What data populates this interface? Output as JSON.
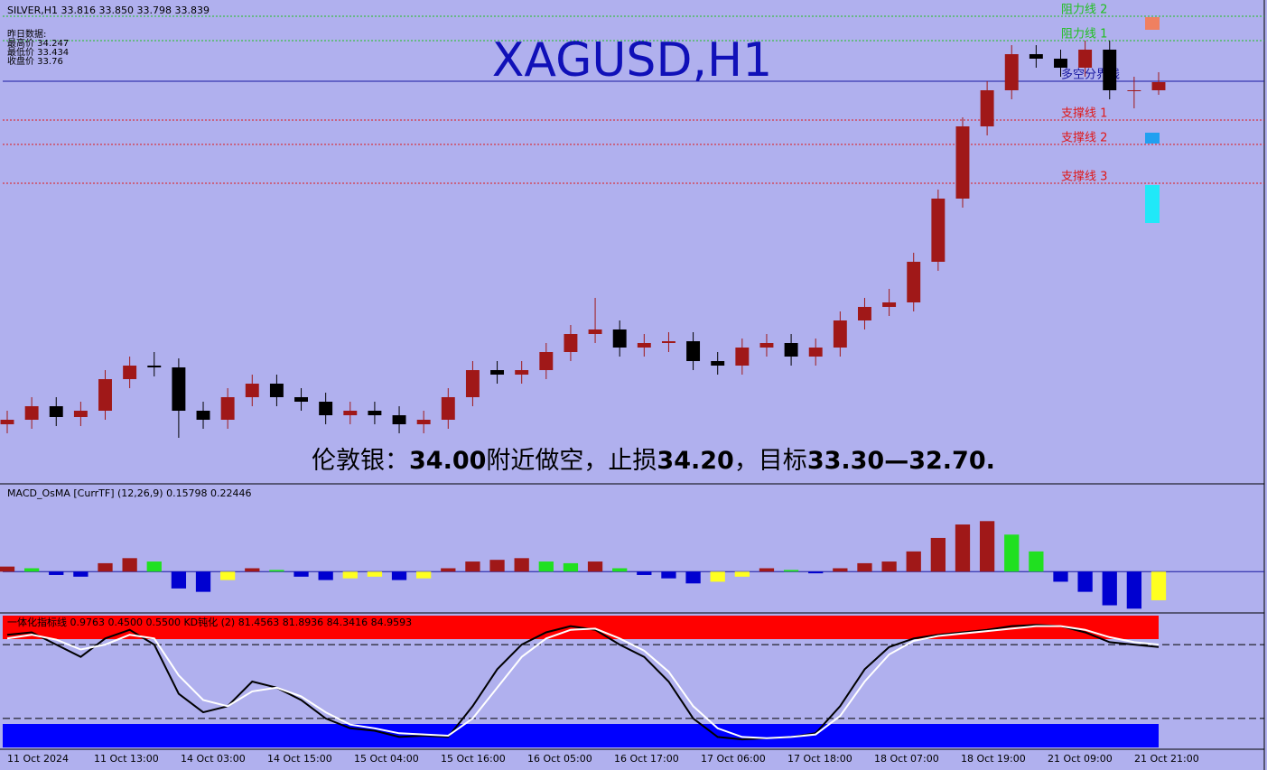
{
  "chart_data": [
    {
      "type": "candlestick",
      "title": "XAGUSD,H1",
      "symbol_line": "SILVER,H1  33.816 33.850 33.798 33.839",
      "info": [
        "昨日数据:",
        "最高价 34.247",
        "最低价 33.434",
        "收盘价 33.76"
      ],
      "annotation": [
        "伦敦银：",
        "34.00",
        "附近做空，止损",
        "34.20",
        "，目标",
        "33.30—32.70."
      ],
      "x_labels": [
        "11 Oct 2024",
        "11 Oct 13:00",
        "14 Oct 03:00",
        "14 Oct 15:00",
        "15 Oct 04:00",
        "15 Oct 16:00",
        "16 Oct 05:00",
        "16 Oct 17:00",
        "17 Oct 06:00",
        "17 Oct 18:00",
        "18 Oct 07:00",
        "18 Oct 19:00",
        "21 Oct 09:00",
        "21 Oct 21:00"
      ],
      "open": [
        30.05,
        30.1,
        30.25,
        30.13,
        30.2,
        30.55,
        30.7,
        30.68,
        30.2,
        30.1,
        30.35,
        30.5,
        30.35,
        30.3,
        30.15,
        30.2,
        30.15,
        30.05,
        30.1,
        30.35,
        30.65,
        30.6,
        30.65,
        30.85,
        31.05,
        31.1,
        30.9,
        30.95,
        30.97,
        30.75,
        30.7,
        30.9,
        30.95,
        30.8,
        30.9,
        31.2,
        31.35,
        31.4,
        31.85,
        32.55,
        33.35,
        33.75,
        34.15,
        34.1,
        34.0,
        34.2,
        33.75,
        33.75
      ],
      "high": [
        30.2,
        30.35,
        30.35,
        30.3,
        30.65,
        30.8,
        30.85,
        30.78,
        30.3,
        30.45,
        30.6,
        30.6,
        30.45,
        30.4,
        30.3,
        30.3,
        30.25,
        30.2,
        30.45,
        30.75,
        30.75,
        30.75,
        30.95,
        31.15,
        31.45,
        31.2,
        31.05,
        31.07,
        31.07,
        30.85,
        31.0,
        31.05,
        31.05,
        31.0,
        31.3,
        31.45,
        31.55,
        31.95,
        32.65,
        33.45,
        33.85,
        34.25,
        34.25,
        34.2,
        34.3,
        34.3,
        33.9,
        33.95
      ],
      "low": [
        29.95,
        30.0,
        30.03,
        30.03,
        30.1,
        30.45,
        30.58,
        29.9,
        30.0,
        30.0,
        30.25,
        30.25,
        30.2,
        30.05,
        30.05,
        30.05,
        29.95,
        29.95,
        30.0,
        30.25,
        30.5,
        30.5,
        30.55,
        30.75,
        30.95,
        30.8,
        30.8,
        30.85,
        30.65,
        30.6,
        30.6,
        30.8,
        30.7,
        30.7,
        30.8,
        31.1,
        31.25,
        31.3,
        31.75,
        32.45,
        33.25,
        33.65,
        34.0,
        33.9,
        33.9,
        33.65,
        33.55,
        33.7
      ],
      "close": [
        30.1,
        30.25,
        30.13,
        30.2,
        30.55,
        30.7,
        30.68,
        30.2,
        30.1,
        30.35,
        30.5,
        30.35,
        30.3,
        30.15,
        30.2,
        30.15,
        30.05,
        30.1,
        30.35,
        30.65,
        30.6,
        30.65,
        30.85,
        31.05,
        31.1,
        30.9,
        30.95,
        30.97,
        30.75,
        30.7,
        30.9,
        30.95,
        30.8,
        30.9,
        31.2,
        31.35,
        31.4,
        31.85,
        32.55,
        33.35,
        33.75,
        34.15,
        34.1,
        34.0,
        34.2,
        33.75,
        33.75,
        33.84
      ],
      "up_color": "#a01818",
      "down_color": "#000000",
      "ylim": [
        29.4,
        34.7
      ],
      "levels": [
        {
          "name": "阻力线 2",
          "value": 34.57,
          "color": "#20c020"
        },
        {
          "name": "阻力线 1",
          "value": 34.3,
          "color": "#20c020"
        },
        {
          "name": "多空分界线",
          "value": 33.85,
          "color": "#1818a0"
        },
        {
          "name": "支撑线 1",
          "value": 33.42,
          "color": "#e01818"
        },
        {
          "name": "支撑线 2",
          "value": 33.15,
          "color": "#e01818"
        },
        {
          "name": "支撑线 3",
          "value": 32.72,
          "color": "#e01818"
        }
      ]
    },
    {
      "type": "histogram",
      "title": "MACD_OsMA [CurrTF] (12,26,9) 0.15798 0.22446",
      "values": [
        0.03,
        0.02,
        -0.02,
        -0.03,
        0.05,
        0.08,
        0.06,
        -0.1,
        -0.12,
        -0.05,
        0.02,
        0.01,
        -0.03,
        -0.05,
        -0.04,
        -0.03,
        -0.05,
        -0.04,
        0.02,
        0.06,
        0.07,
        0.08,
        0.06,
        0.05,
        0.06,
        0.02,
        -0.02,
        -0.04,
        -0.07,
        -0.06,
        -0.03,
        0.02,
        0.01,
        -0.01,
        0.02,
        0.05,
        0.06,
        0.12,
        0.2,
        0.28,
        0.3,
        0.22,
        0.12,
        -0.06,
        -0.12,
        -0.2,
        -0.22,
        -0.17
      ],
      "ylim": [
        -0.24,
        0.5
      ]
    },
    {
      "type": "line",
      "title": "一体化指标线 0.9763 0.4500 0.5500  KD钝化 (2) 81.4563 81.8936 84.3416 84.9593",
      "series": [
        {
          "color": "#000000",
          "values": [
            88,
            90,
            80,
            70,
            85,
            92,
            80,
            40,
            25,
            30,
            50,
            45,
            35,
            20,
            12,
            10,
            5,
            6,
            5,
            30,
            60,
            80,
            90,
            95,
            92,
            80,
            70,
            50,
            20,
            5,
            3,
            4,
            5,
            8,
            30,
            60,
            78,
            85,
            88,
            90,
            92,
            95,
            96,
            95,
            90,
            82,
            80,
            78
          ]
        },
        {
          "color": "#ffffff",
          "values": [
            85,
            88,
            84,
            76,
            80,
            88,
            85,
            55,
            35,
            30,
            42,
            45,
            38,
            25,
            15,
            12,
            8,
            7,
            6,
            20,
            45,
            70,
            85,
            92,
            93,
            85,
            75,
            58,
            30,
            12,
            5,
            4,
            5,
            7,
            22,
            50,
            72,
            83,
            87,
            89,
            91,
            93,
            95,
            95,
            92,
            86,
            82,
            80
          ]
        }
      ],
      "levels": [
        80,
        20
      ],
      "ylim": [
        -5,
        105
      ]
    }
  ]
}
